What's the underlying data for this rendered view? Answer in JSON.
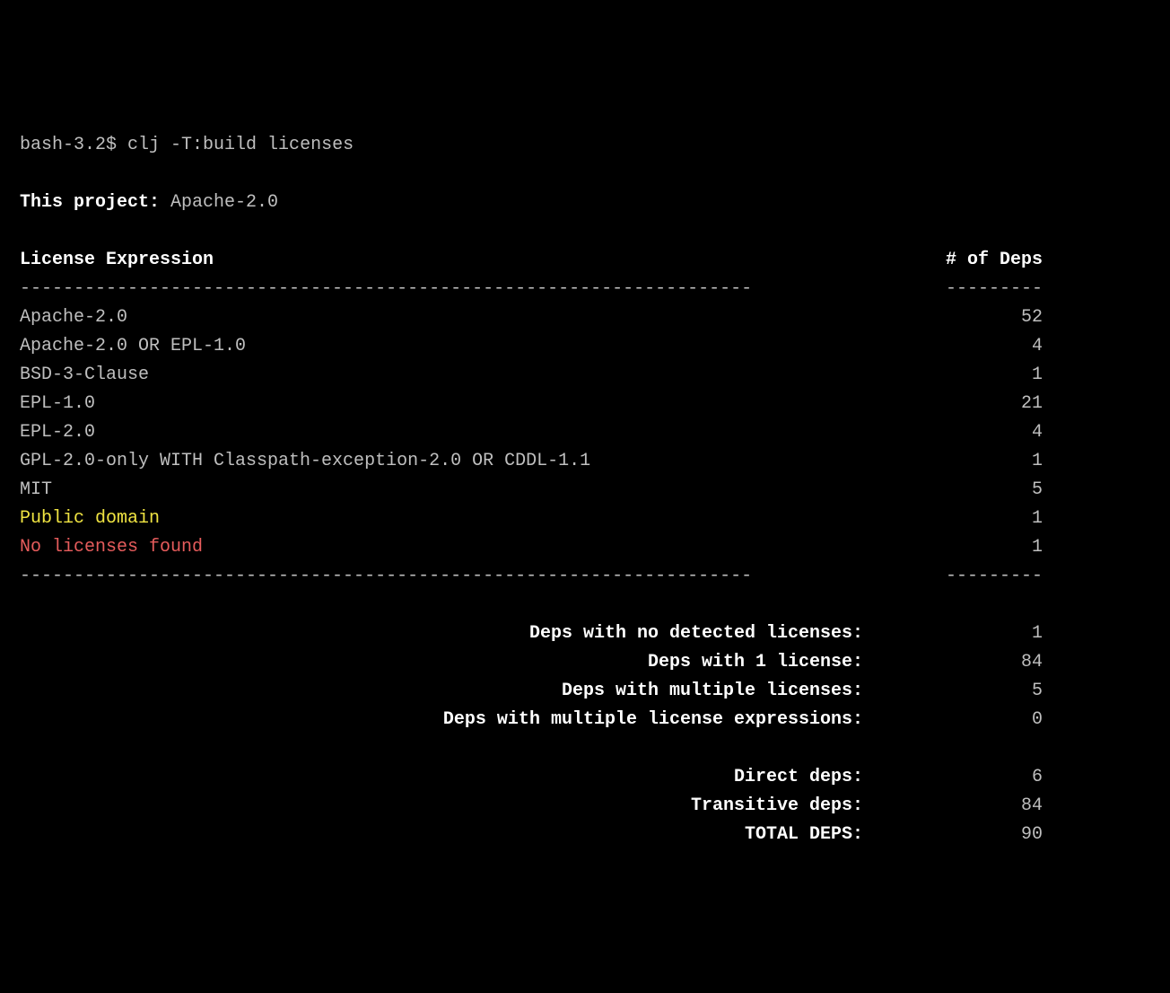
{
  "prompt": "bash-3.2$ ",
  "command": "clj -T:build licenses",
  "project_label": "This project: ",
  "project_license": "Apache-2.0",
  "header": {
    "col1": "License Expression",
    "col2": "# of Deps"
  },
  "rule1": "--------------------------------------------------------------------",
  "rule2": "---------",
  "rows": [
    {
      "name": "Apache-2.0",
      "count": "52",
      "color": "dim"
    },
    {
      "name": "Apache-2.0 OR EPL-1.0",
      "count": "4",
      "color": "dim"
    },
    {
      "name": "BSD-3-Clause",
      "count": "1",
      "color": "dim"
    },
    {
      "name": "EPL-1.0",
      "count": "21",
      "color": "dim"
    },
    {
      "name": "EPL-2.0",
      "count": "4",
      "color": "dim"
    },
    {
      "name": "GPL-2.0-only WITH Classpath-exception-2.0 OR CDDL-1.1",
      "count": "1",
      "color": "dim"
    },
    {
      "name": "MIT",
      "count": "5",
      "color": "dim"
    },
    {
      "name": "Public domain",
      "count": "1",
      "color": "yellow"
    },
    {
      "name": "No licenses found",
      "count": "1",
      "color": "red"
    }
  ],
  "summary1": [
    {
      "label": "Deps with no detected licenses:",
      "value": "1"
    },
    {
      "label": "Deps with 1 license:",
      "value": "84"
    },
    {
      "label": "Deps with multiple licenses:",
      "value": "5"
    },
    {
      "label": "Deps with multiple license expressions:",
      "value": "0"
    }
  ],
  "summary2": [
    {
      "label": "Direct deps:",
      "value": "6"
    },
    {
      "label": "Transitive deps:",
      "value": "84"
    },
    {
      "label": "TOTAL DEPS:",
      "value": "90"
    }
  ]
}
